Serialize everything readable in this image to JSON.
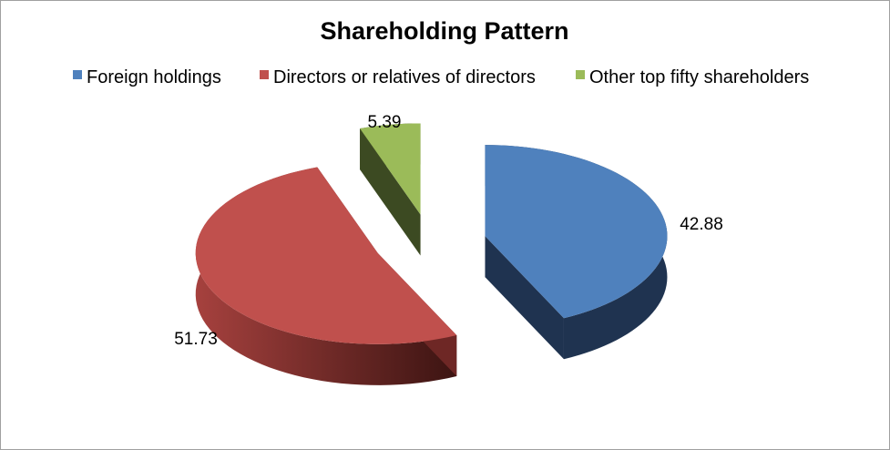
{
  "chart_data": {
    "type": "pie",
    "style": "3d-exploded",
    "title": "Shareholding Pattern",
    "legend_position": "top",
    "categories": [
      "Foreign holdings",
      "Directors or relatives of directors",
      "Other top fifty shareholders"
    ],
    "values": [
      42.88,
      51.73,
      5.39
    ],
    "data_labels": [
      "42.88",
      "51.73",
      "5.39"
    ],
    "colors": [
      "#4F81BD",
      "#C0504D",
      "#9BBB59"
    ],
    "side_colors": [
      "#1F3350",
      "#6E2725",
      "#3C4A22"
    ]
  }
}
